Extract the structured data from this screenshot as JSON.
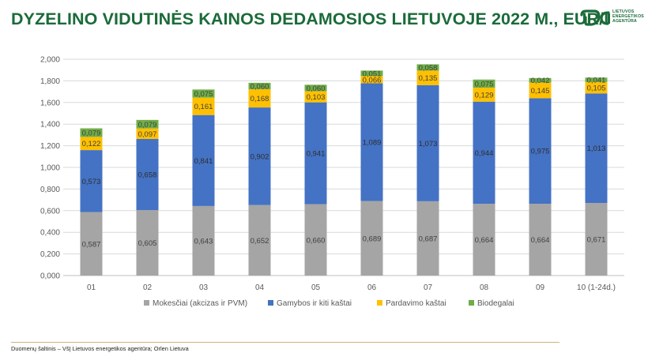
{
  "header": {
    "title": "DYZELINO VIDUTINĖS KAINOS DEDAMOSIOS LIETUVOJE 2022 M., EUR/l",
    "logo_lines": [
      "LIETUVOS",
      "ENERGETIKOS",
      "AGENTŪRA"
    ],
    "logo_icon": "agency-logo-icon"
  },
  "footer": {
    "source": "Duomenų šaltinis – VšĮ Lietuvos energetikos agentūra; Orlen Lietuva"
  },
  "chart_data": {
    "type": "bar",
    "stacked": true,
    "categories": [
      "01",
      "02",
      "03",
      "04",
      "05",
      "06",
      "07",
      "08",
      "09",
      "10 (1-24d.)"
    ],
    "ylim": [
      0,
      2
    ],
    "yticks": [
      "0,000",
      "0,200",
      "0,400",
      "0,600",
      "0,800",
      "1,000",
      "1,200",
      "1,400",
      "1,600",
      "1,800",
      "2,000"
    ],
    "grid": true,
    "legend_position": "bottom",
    "series": [
      {
        "name": "Mokesčiai (akcizas ir PVM)",
        "color": "#a5a5a5",
        "values": [
          0.587,
          0.605,
          0.643,
          0.652,
          0.66,
          0.689,
          0.687,
          0.664,
          0.664,
          0.671
        ],
        "labels": [
          "0,587",
          "0,605",
          "0,643",
          "0,652",
          "0,660",
          "0,689",
          "0,687",
          "0,664",
          "0,664",
          "0,671"
        ]
      },
      {
        "name": "Gamybos ir kiti kaštai",
        "color": "#4472c4",
        "values": [
          0.573,
          0.658,
          0.841,
          0.902,
          0.941,
          1.089,
          1.073,
          0.944,
          0.975,
          1.013
        ],
        "labels": [
          "0,573",
          "0,658",
          "0,841",
          "0,902",
          "0,941",
          "1,089",
          "1,073",
          "0,944",
          "0,975",
          "1,013"
        ]
      },
      {
        "name": "Pardavimo kaštai",
        "color": "#ffc000",
        "values": [
          0.122,
          0.097,
          0.161,
          0.168,
          0.103,
          0.066,
          0.135,
          0.129,
          0.145,
          0.105
        ],
        "labels": [
          "0,122",
          "0,097",
          "0,161",
          "0,168",
          "0,103",
          "0,066",
          "0,135",
          "0,129",
          "0,145",
          "0,105"
        ]
      },
      {
        "name": "Biodegalai",
        "color": "#70ad47",
        "values": [
          0.079,
          0.079,
          0.075,
          0.06,
          0.06,
          0.051,
          0.058,
          0.075,
          0.042,
          0.041
        ],
        "labels": [
          "0,079",
          "0,079",
          "0,075",
          "0,060",
          "0,060",
          "0,051",
          "0,058",
          "0,075",
          "0,042",
          "0,041"
        ]
      }
    ]
  }
}
